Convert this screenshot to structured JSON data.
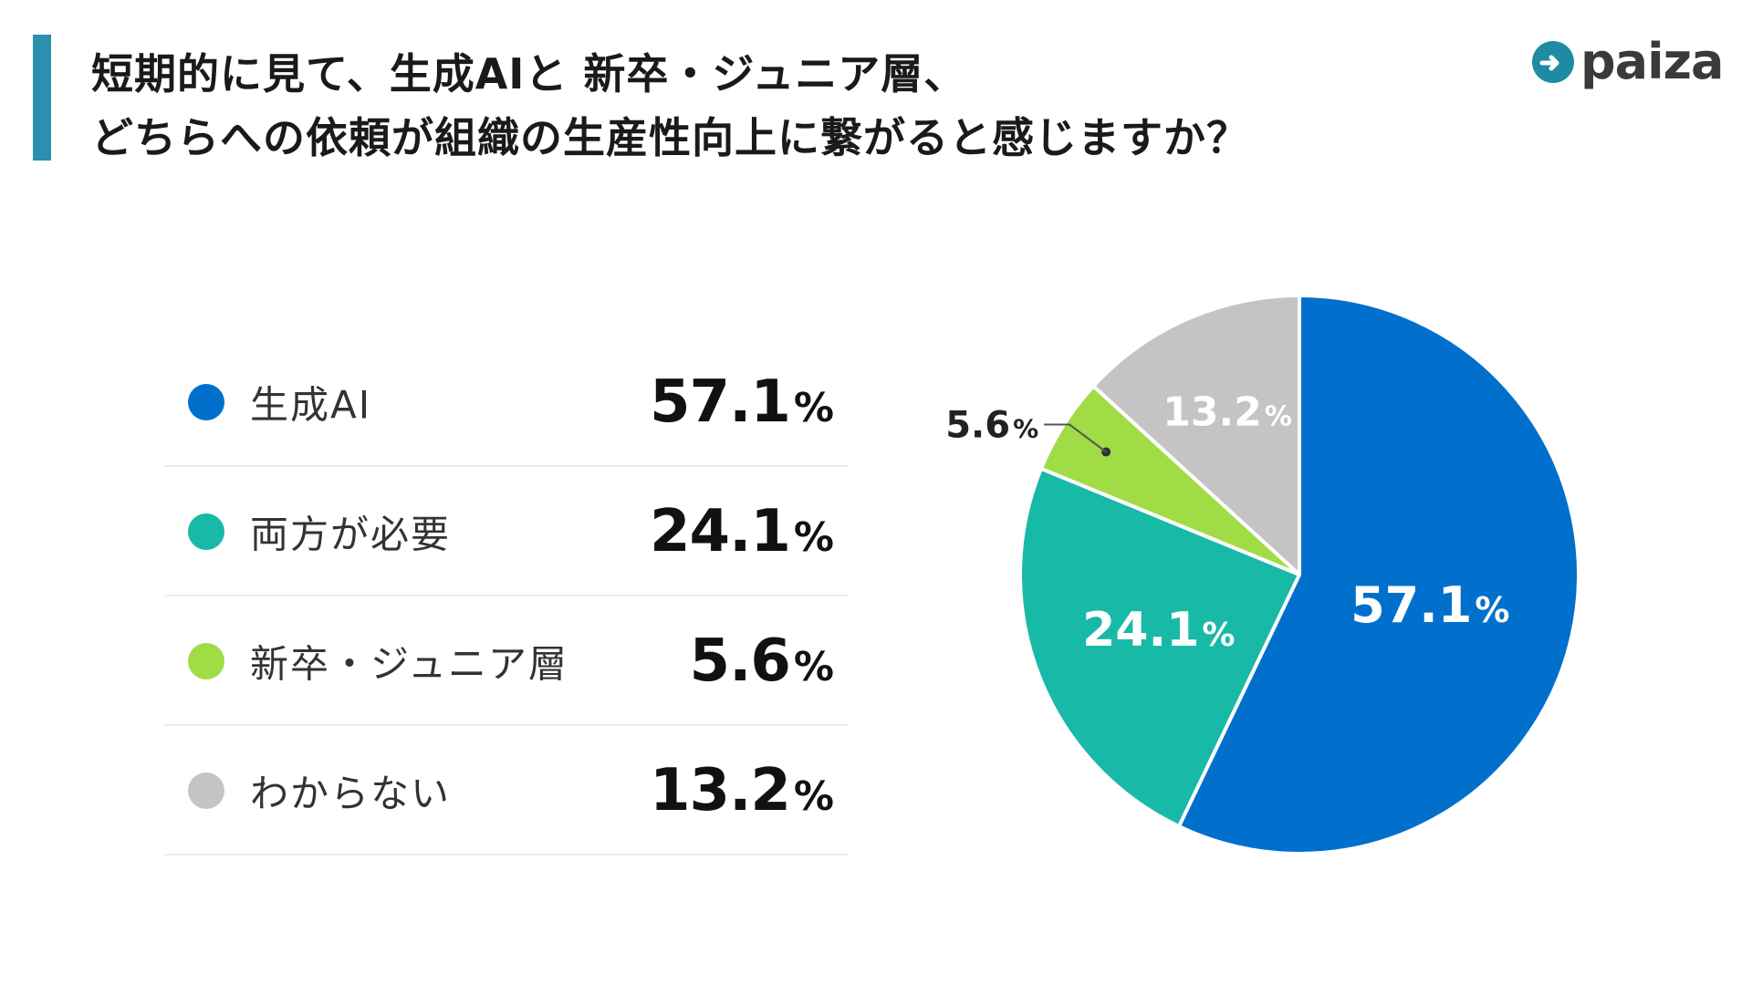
{
  "title": {
    "line1": "短期的に見て、生成AIと 新卒・ジュニア層、",
    "line2": "どちらへの依頼が組織の生産性向上に繋がると感じますか？"
  },
  "logo": {
    "text": "paiza"
  },
  "chart_data": {
    "type": "pie",
    "title": "短期的に見て、生成AIと 新卒・ジュニア層、どちらへの依頼が組織の生産性向上に繋がると感じますか？",
    "unit": "%",
    "slices": [
      {
        "label": "生成AI",
        "value": 57.1,
        "display": "57.1",
        "color": "#0070cc",
        "label_color": "#ffffff"
      },
      {
        "label": "両方が必要",
        "value": 24.1,
        "display": "24.1",
        "color": "#19b9a8",
        "label_color": "#ffffff"
      },
      {
        "label": "新卒・ジュニア層",
        "value": 5.6,
        "display": "5.6",
        "color": "#a0dc46",
        "label_color": "#222222"
      },
      {
        "label": "わからない",
        "value": 13.2,
        "display": "13.2",
        "color": "#c4c4c4",
        "label_color": "#ffffff"
      }
    ],
    "start": "12 o'clock",
    "direction": "clockwise"
  }
}
